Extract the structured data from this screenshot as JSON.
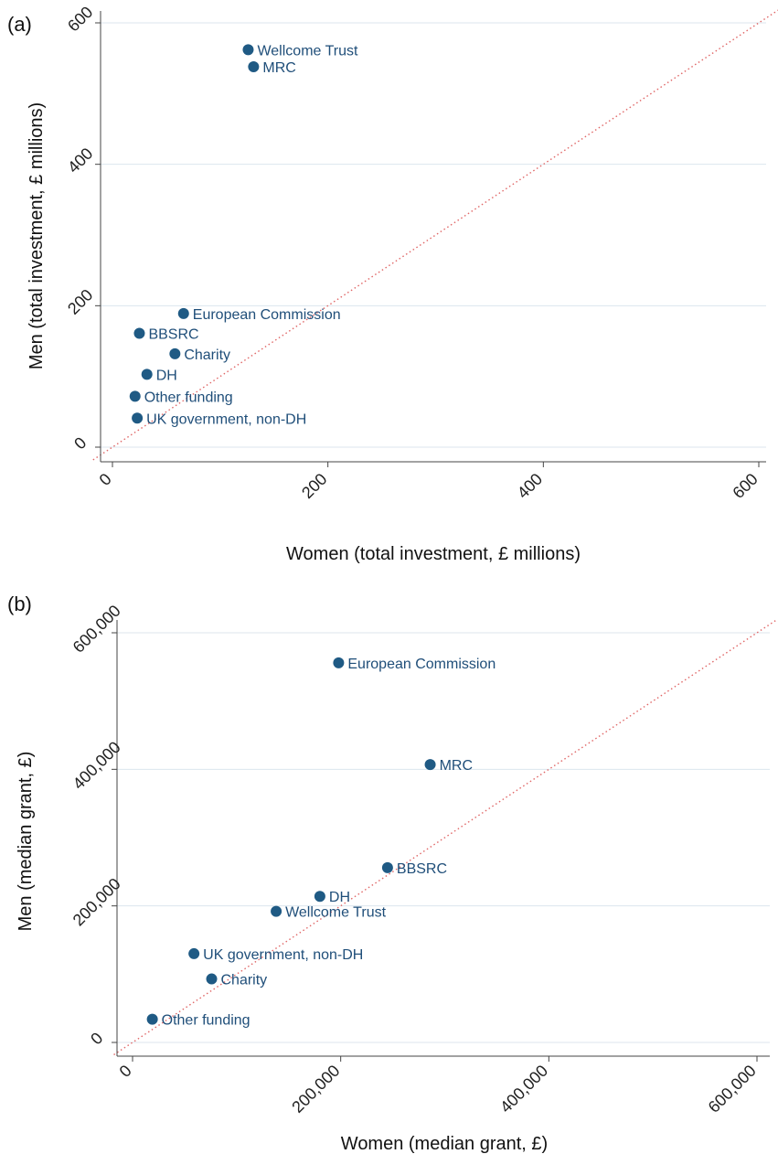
{
  "chart_data": [
    {
      "type": "scatter",
      "panel_label": "(a)",
      "xlabel": "Women (total investment, £ millions)",
      "ylabel": "Men (total investment, £ millions)",
      "xlim": [
        0,
        600
      ],
      "ylim": [
        0,
        600
      ],
      "xticks": [
        0,
        200,
        400,
        600
      ],
      "yticks": [
        0,
        200,
        400,
        600
      ],
      "xtick_labels": [
        "0",
        "200",
        "400",
        "600"
      ],
      "ytick_labels": [
        "0",
        "200",
        "400",
        "600"
      ],
      "grid": true,
      "reference_line": "y = x",
      "points": [
        {
          "label": "Wellcome Trust",
          "x": 126,
          "y": 562
        },
        {
          "label": "MRC",
          "x": 131,
          "y": 538
        },
        {
          "label": "European Commission",
          "x": 66,
          "y": 189
        },
        {
          "label": "BBSRC",
          "x": 25,
          "y": 161
        },
        {
          "label": "Charity",
          "x": 58,
          "y": 132
        },
        {
          "label": "DH",
          "x": 32,
          "y": 103
        },
        {
          "label": "Other funding",
          "x": 21,
          "y": 72
        },
        {
          "label": "UK government, non-DH",
          "x": 23,
          "y": 41
        }
      ]
    },
    {
      "type": "scatter",
      "panel_label": "(b)",
      "xlabel": "Women (median grant, £)",
      "ylabel": "Men (median grant, £)",
      "xlim": [
        0,
        600000
      ],
      "ylim": [
        0,
        600000
      ],
      "xticks": [
        0,
        200000,
        400000,
        600000
      ],
      "yticks": [
        0,
        200000,
        400000,
        600000
      ],
      "xtick_labels": [
        "0",
        "200,000",
        "400,000",
        "600,000"
      ],
      "ytick_labels": [
        "0",
        "200,000",
        "400,000",
        "600,000"
      ],
      "grid": true,
      "reference_line": "y = x",
      "points": [
        {
          "label": "European Commission",
          "x": 198000,
          "y": 556000
        },
        {
          "label": "MRC",
          "x": 286000,
          "y": 407000
        },
        {
          "label": "BBSRC",
          "x": 245000,
          "y": 256000
        },
        {
          "label": "DH",
          "x": 180000,
          "y": 214000
        },
        {
          "label": "Wellcome Trust",
          "x": 138000,
          "y": 192000
        },
        {
          "label": "UK government, non-DH",
          "x": 59000,
          "y": 130000
        },
        {
          "label": "Charity",
          "x": 76000,
          "y": 93000
        },
        {
          "label": "Other funding",
          "x": 19000,
          "y": 34000
        }
      ]
    }
  ]
}
